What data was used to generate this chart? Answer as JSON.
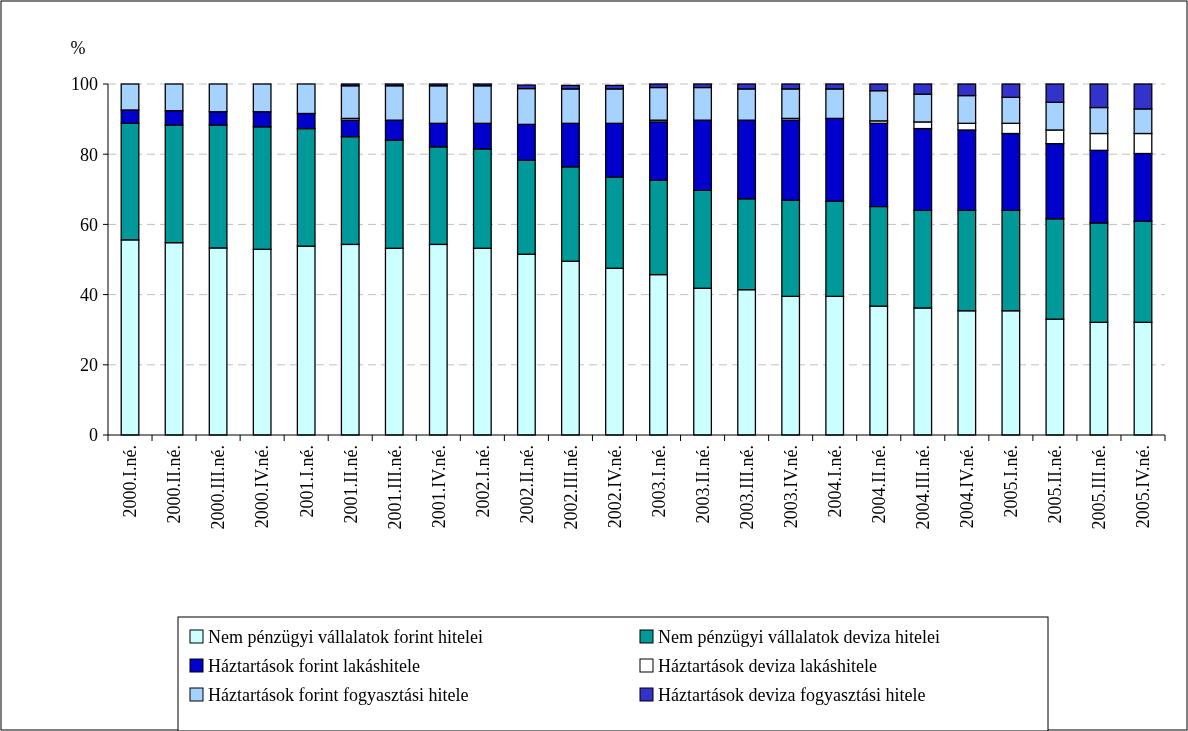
{
  "chart_data": {
    "type": "bar",
    "stacked": true,
    "ylabel": "%",
    "ylim": [
      0,
      100
    ],
    "yticks": [
      0,
      20,
      40,
      60,
      80,
      100
    ],
    "grid": "y",
    "legend": "bottom",
    "categories": [
      "2000.I.né.",
      "2000.II.né.",
      "2000.III.né.",
      "2000.IV.né.",
      "2001.I.né.",
      "2001.II.né.",
      "2001.III.né.",
      "2001.IV.né.",
      "2002.I.né.",
      "2002.II.né.",
      "2002.III.né.",
      "2002.IV.né.",
      "2003.I.né.",
      "2003.II.né.",
      "2003.III.né.",
      "2003.IV.né.",
      "2004.I.né.",
      "2004.II.né.",
      "2004.III.né.",
      "2004.IV.né.",
      "2005.I.né.",
      "2005.II.né.",
      "2005.III.né.",
      "2005.IV.né."
    ],
    "series": [
      {
        "name": "Nem pénzügyi vállalatok forint hitelei",
        "color": "#ccffff",
        "values": [
          55.6,
          54.8,
          53.3,
          52.9,
          53.8,
          54.3,
          53.2,
          54.3,
          53.2,
          51.5,
          49.5,
          47.5,
          45.7,
          41.8,
          41.4,
          39.5,
          39.5,
          36.7,
          36.2,
          35.4,
          35.4,
          33.0,
          32.1,
          32.1
        ]
      },
      {
        "name": "Nem pénzügyi vállalatok deviza hitelei",
        "color": "#009999",
        "values": [
          33.2,
          33.5,
          35.0,
          34.9,
          33.5,
          30.7,
          30.8,
          27.8,
          28.3,
          26.8,
          26.9,
          26.0,
          26.9,
          27.9,
          25.9,
          27.4,
          27.1,
          28.4,
          27.8,
          28.6,
          28.6,
          28.6,
          28.3,
          28.8
        ]
      },
      {
        "name": "Háztartások forint lakáshitele",
        "color": "#0000cc",
        "values": [
          3.8,
          4.1,
          3.8,
          4.3,
          4.3,
          4.7,
          5.7,
          6.7,
          7.3,
          10.2,
          12.4,
          15.3,
          16.6,
          20.0,
          22.4,
          22.8,
          23.6,
          23.7,
          23.3,
          22.9,
          21.9,
          21.4,
          20.7,
          19.3
        ]
      },
      {
        "name": "Háztartások deviza lakáshitele",
        "color": "#ffffff",
        "values": [
          0,
          0,
          0,
          0,
          0,
          0.5,
          0,
          0,
          0,
          null,
          null,
          null,
          0.5,
          0,
          0,
          0.5,
          0,
          0.7,
          1.9,
          1.9,
          2.9,
          3.9,
          4.8,
          5.7
        ]
      },
      {
        "name": "Háztartások forint fogyasztási hitele",
        "color": "#a6d2ff",
        "values": [
          7.4,
          7.6,
          7.9,
          7.9,
          8.4,
          9.3,
          9.8,
          10.7,
          10.7,
          10.2,
          9.8,
          9.8,
          9.3,
          9.3,
          8.9,
          8.4,
          8.4,
          8.6,
          7.9,
          7.9,
          7.4,
          7.9,
          7.4,
          7.0
        ]
      },
      {
        "name": "Háztartások deviza fogyasztási hitele",
        "color": "#3333cc",
        "values": [
          0,
          0,
          0,
          0,
          0,
          0.5,
          0.5,
          0.5,
          0.5,
          1.0,
          1.0,
          1.0,
          1.0,
          1.0,
          1.4,
          1.4,
          1.4,
          1.9,
          2.9,
          3.3,
          3.8,
          5.2,
          6.7,
          7.1
        ]
      }
    ]
  }
}
